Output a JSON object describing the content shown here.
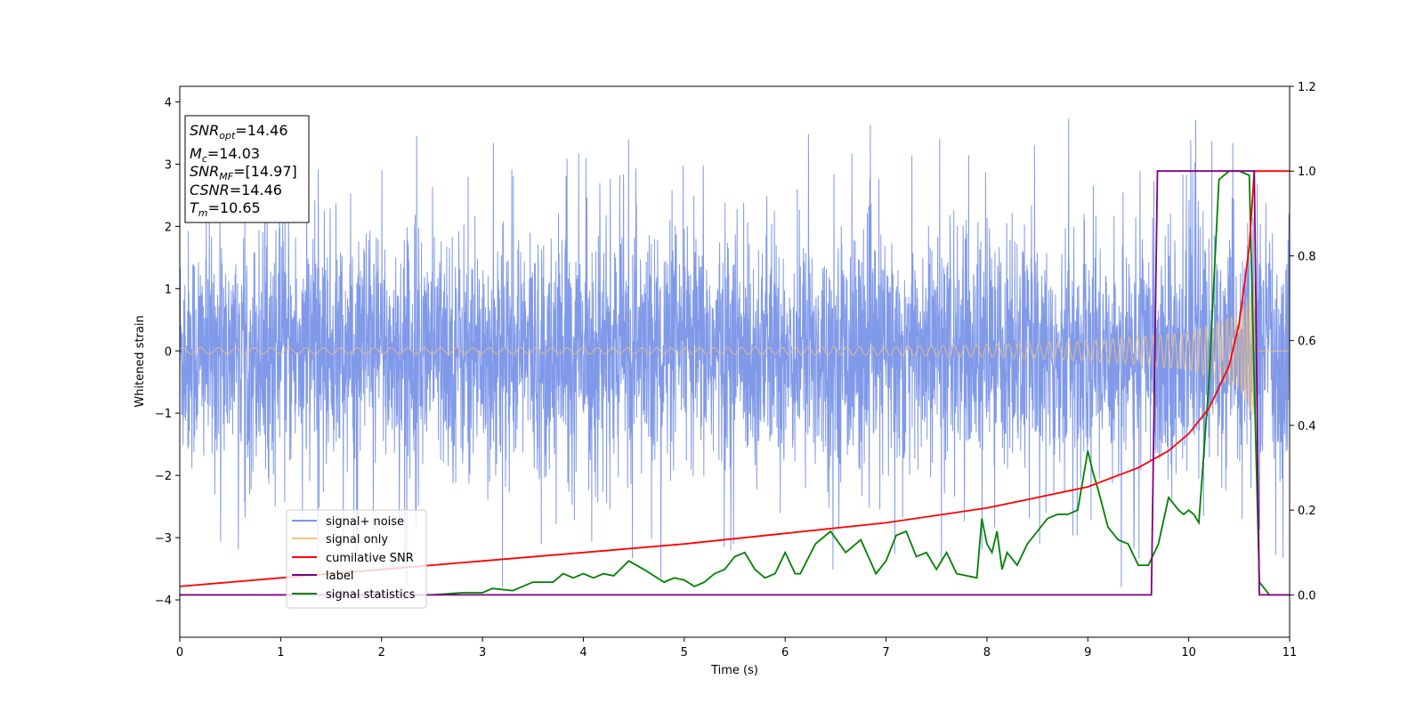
{
  "chart_data": {
    "type": "line",
    "xlabel": "Time (s)",
    "ylabel": "Whitened strain",
    "xlim": [
      0,
      11
    ],
    "ylim_left": [
      -4.6,
      4.25
    ],
    "ylim_right": [
      -0.1,
      1.2
    ],
    "xticks": [
      "0",
      "1",
      "2",
      "3",
      "4",
      "5",
      "6",
      "7",
      "8",
      "9",
      "10",
      "11"
    ],
    "yticks_left": [
      "−4",
      "−3",
      "−2",
      "−1",
      "0",
      "1",
      "2",
      "3",
      "4"
    ],
    "yticks_right": [
      "0.0",
      "0.2",
      "0.4",
      "0.6",
      "0.8",
      "1.0",
      "1.2"
    ],
    "legend_location": "lower-left",
    "annotation": {
      "snr_opt": "=14.46",
      "mc": "=14.03",
      "snr_mf": "=[14.97]",
      "csnr": "=14.46",
      "tm": "=10.65"
    },
    "series": [
      {
        "name": "signal+ noise",
        "axis": "left",
        "color": "#7994e8",
        "description_values": {
          "mean": 0,
          "typical_range": [
            -2.0,
            2.2
          ],
          "extremes": [
            -4.15,
            3.85
          ]
        }
      },
      {
        "name": "signal only",
        "axis": "left",
        "color": "#f5c27a",
        "envelope": {
          "x": [
            0,
            1,
            2,
            3,
            4,
            5,
            6,
            7,
            8,
            9,
            10,
            10.5,
            10.65
          ],
          "amplitude": [
            0.05,
            0.05,
            0.05,
            0.05,
            0.05,
            0.05,
            0.06,
            0.07,
            0.1,
            0.16,
            0.3,
            0.6,
            1.1
          ]
        }
      },
      {
        "name": "cumilative SNR",
        "axis": "right",
        "color": "#ff0000",
        "x": [
          0,
          1,
          2,
          3,
          4,
          5,
          6,
          7,
          8,
          9,
          9.5,
          9.8,
          10,
          10.2,
          10.4,
          10.5,
          10.6,
          10.65,
          11
        ],
        "y": [
          0.02,
          0.04,
          0.06,
          0.08,
          0.1,
          0.12,
          0.145,
          0.17,
          0.205,
          0.255,
          0.3,
          0.34,
          0.38,
          0.44,
          0.54,
          0.64,
          0.82,
          1.0,
          1.0
        ]
      },
      {
        "name": "label",
        "axis": "right",
        "color": "#800080",
        "x": [
          0,
          9.63,
          9.69,
          10.65,
          10.7,
          11
        ],
        "y": [
          0.0,
          0.0,
          1.0,
          1.0,
          0.0,
          0.0
        ]
      },
      {
        "name": "signal statistics",
        "axis": "right",
        "color": "#008000",
        "x": [
          0,
          0.5,
          1,
          1.5,
          2,
          2.5,
          2.8,
          3,
          3.1,
          3.3,
          3.5,
          3.7,
          3.8,
          3.9,
          4.0,
          4.1,
          4.2,
          4.3,
          4.45,
          4.6,
          4.8,
          4.9,
          5.0,
          5.1,
          5.2,
          5.3,
          5.4,
          5.5,
          5.6,
          5.7,
          5.8,
          5.9,
          6.0,
          6.1,
          6.15,
          6.3,
          6.45,
          6.6,
          6.75,
          6.9,
          7.0,
          7.1,
          7.2,
          7.3,
          7.4,
          7.5,
          7.6,
          7.7,
          7.9,
          7.95,
          8.0,
          8.05,
          8.1,
          8.15,
          8.2,
          8.3,
          8.4,
          8.5,
          8.6,
          8.7,
          8.8,
          8.9,
          9.0,
          9.05,
          9.1,
          9.2,
          9.3,
          9.4,
          9.5,
          9.6,
          9.7,
          9.8,
          9.9,
          9.95,
          10.0,
          10.05,
          10.1,
          10.2,
          10.3,
          10.4,
          10.5,
          10.6,
          10.65,
          10.7,
          10.8,
          11.0
        ],
        "y": [
          0.0,
          0.0,
          0.0,
          0.0,
          0.0,
          0.0,
          0.005,
          0.005,
          0.015,
          0.01,
          0.03,
          0.03,
          0.05,
          0.04,
          0.05,
          0.04,
          0.05,
          0.045,
          0.08,
          0.06,
          0.03,
          0.04,
          0.035,
          0.02,
          0.03,
          0.05,
          0.06,
          0.09,
          0.1,
          0.06,
          0.04,
          0.05,
          0.1,
          0.05,
          0.05,
          0.12,
          0.15,
          0.1,
          0.13,
          0.05,
          0.08,
          0.14,
          0.15,
          0.09,
          0.1,
          0.06,
          0.1,
          0.05,
          0.04,
          0.18,
          0.12,
          0.1,
          0.15,
          0.06,
          0.1,
          0.07,
          0.12,
          0.15,
          0.18,
          0.19,
          0.19,
          0.2,
          0.34,
          0.29,
          0.25,
          0.16,
          0.13,
          0.12,
          0.07,
          0.07,
          0.12,
          0.23,
          0.2,
          0.19,
          0.2,
          0.19,
          0.17,
          0.5,
          0.98,
          1.0,
          1.0,
          0.99,
          0.5,
          0.03,
          0.0,
          0.0
        ]
      }
    ]
  }
}
